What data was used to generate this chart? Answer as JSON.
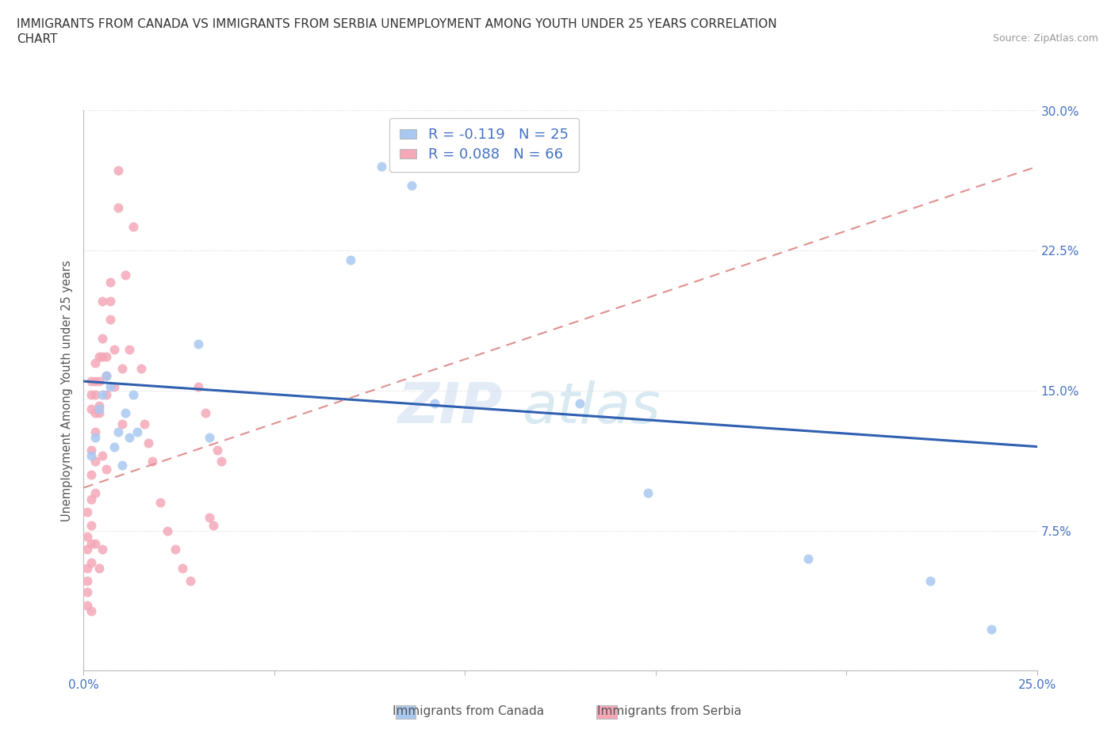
{
  "title_line1": "IMMIGRANTS FROM CANADA VS IMMIGRANTS FROM SERBIA UNEMPLOYMENT AMONG YOUTH UNDER 25 YEARS CORRELATION",
  "title_line2": "CHART",
  "source": "Source: ZipAtlas.com",
  "ylabel": "Unemployment Among Youth under 25 years",
  "xlim": [
    0.0,
    0.25
  ],
  "ylim": [
    0.0,
    0.3
  ],
  "xticks": [
    0.0,
    0.05,
    0.1,
    0.15,
    0.2,
    0.25
  ],
  "yticks": [
    0.0,
    0.075,
    0.15,
    0.225,
    0.3
  ],
  "canada_R": -0.119,
  "canada_N": 25,
  "serbia_R": 0.088,
  "serbia_N": 66,
  "canada_color": "#a8c8f0",
  "serbia_color": "#f4a8b8",
  "canada_line_color": "#3060b0",
  "serbia_line_color": "#e09090",
  "canada_x": [
    0.002,
    0.003,
    0.004,
    0.005,
    0.006,
    0.007,
    0.008,
    0.009,
    0.01,
    0.011,
    0.012,
    0.013,
    0.014,
    0.03,
    0.033,
    0.07,
    0.078,
    0.082,
    0.086,
    0.092,
    0.13,
    0.148,
    0.19,
    0.222,
    0.238
  ],
  "canada_y": [
    0.115,
    0.125,
    0.14,
    0.148,
    0.158,
    0.152,
    0.12,
    0.128,
    0.11,
    0.138,
    0.125,
    0.148,
    0.128,
    0.175,
    0.125,
    0.22,
    0.27,
    0.285,
    0.26,
    0.143,
    0.143,
    0.095,
    0.06,
    0.048,
    0.022
  ],
  "serbia_x": [
    0.001,
    0.001,
    0.001,
    0.001,
    0.001,
    0.001,
    0.001,
    0.002,
    0.002,
    0.002,
    0.002,
    0.002,
    0.002,
    0.002,
    0.002,
    0.002,
    0.002,
    0.003,
    0.003,
    0.003,
    0.003,
    0.003,
    0.003,
    0.003,
    0.003,
    0.004,
    0.004,
    0.004,
    0.004,
    0.004,
    0.005,
    0.005,
    0.005,
    0.005,
    0.005,
    0.006,
    0.006,
    0.006,
    0.006,
    0.007,
    0.007,
    0.007,
    0.008,
    0.008,
    0.009,
    0.009,
    0.01,
    0.01,
    0.011,
    0.012,
    0.013,
    0.015,
    0.016,
    0.017,
    0.018,
    0.02,
    0.022,
    0.024,
    0.026,
    0.028,
    0.03,
    0.032,
    0.033,
    0.034,
    0.035,
    0.036
  ],
  "serbia_y": [
    0.085,
    0.072,
    0.065,
    0.055,
    0.048,
    0.042,
    0.035,
    0.155,
    0.148,
    0.14,
    0.118,
    0.105,
    0.092,
    0.078,
    0.068,
    0.058,
    0.032,
    0.165,
    0.155,
    0.148,
    0.138,
    0.128,
    0.112,
    0.095,
    0.068,
    0.168,
    0.155,
    0.142,
    0.138,
    0.055,
    0.198,
    0.178,
    0.168,
    0.115,
    0.065,
    0.168,
    0.158,
    0.148,
    0.108,
    0.208,
    0.198,
    0.188,
    0.172,
    0.152,
    0.268,
    0.248,
    0.162,
    0.132,
    0.212,
    0.172,
    0.238,
    0.162,
    0.132,
    0.122,
    0.112,
    0.09,
    0.075,
    0.065,
    0.055,
    0.048,
    0.152,
    0.138,
    0.082,
    0.078,
    0.118,
    0.112
  ],
  "canada_line_x0": 0.0,
  "canada_line_y0": 0.155,
  "canada_line_x1": 0.25,
  "canada_line_y1": 0.12,
  "serbia_line_x0": 0.0,
  "serbia_line_y0": 0.098,
  "serbia_line_x1": 0.25,
  "serbia_line_y1": 0.27,
  "background_color": "#ffffff",
  "grid_color": "#d8d8d8"
}
